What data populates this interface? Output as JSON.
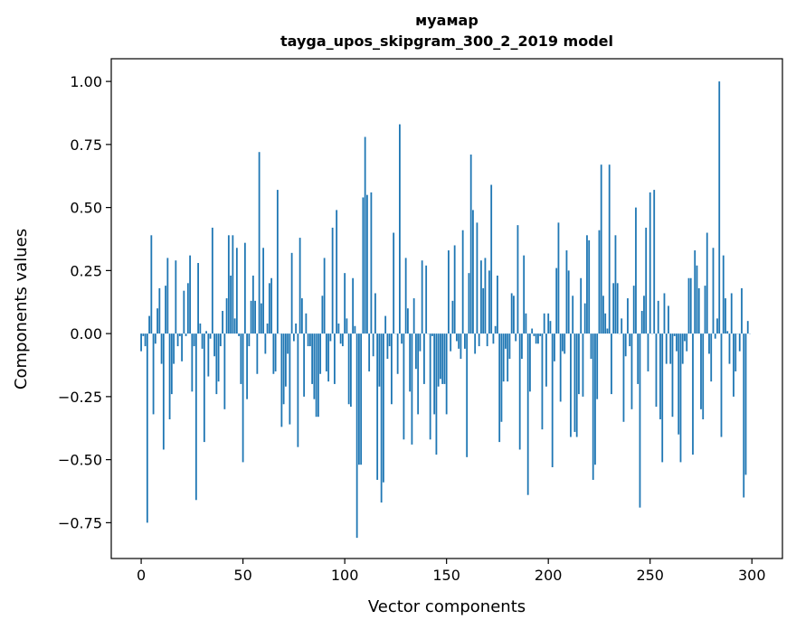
{
  "chart_data": {
    "type": "bar",
    "title": "муамар",
    "subtitle": "tayga_upos_skipgram_300_2_2019 model",
    "xlabel": "Vector components",
    "ylabel": "Components values",
    "xlim": [
      -14.7,
      315
    ],
    "ylim": [
      -0.892,
      1.09
    ],
    "xticks": [
      0,
      50,
      100,
      150,
      200,
      250,
      300
    ],
    "xtick_labels": [
      "0",
      "50",
      "100",
      "150",
      "200",
      "250",
      "300"
    ],
    "yticks": [
      -0.75,
      -0.5,
      -0.25,
      0,
      0.25,
      0.5,
      0.75,
      1.0
    ],
    "ytick_labels": [
      "−0.75",
      "−0.50",
      "−0.25",
      "0.00",
      "0.25",
      "0.50",
      "0.75",
      "1.00"
    ],
    "grid": false,
    "bar_color": "#1f77b4",
    "values": [
      -0.07,
      -0.01,
      -0.05,
      -0.75,
      0.07,
      0.39,
      -0.32,
      -0.04,
      0.1,
      0.18,
      -0.12,
      -0.46,
      0.19,
      0.3,
      -0.34,
      -0.24,
      -0.12,
      0.29,
      -0.05,
      -0.01,
      -0.11,
      0.17,
      -0.01,
      0.2,
      0.31,
      -0.23,
      -0.05,
      -0.66,
      0.28,
      0.04,
      -0.06,
      -0.43,
      0.01,
      -0.17,
      -0.02,
      0.42,
      -0.09,
      -0.24,
      -0.19,
      -0.05,
      0.09,
      -0.3,
      0.14,
      0.39,
      0.23,
      0.39,
      0.06,
      0.34,
      -0.01,
      -0.2,
      -0.51,
      0.36,
      -0.26,
      -0.05,
      0.13,
      0.23,
      0.13,
      -0.16,
      0.72,
      0.12,
      0.34,
      -0.08,
      0.04,
      0.2,
      0.22,
      -0.16,
      -0.15,
      0.57,
      0.0,
      -0.37,
      -0.28,
      -0.21,
      -0.08,
      -0.36,
      0.32,
      -0.03,
      0.04,
      -0.45,
      0.38,
      0.14,
      -0.25,
      0.08,
      -0.05,
      -0.05,
      -0.2,
      -0.26,
      -0.33,
      -0.33,
      -0.16,
      0.15,
      0.3,
      -0.15,
      -0.19,
      -0.03,
      0.42,
      -0.2,
      0.49,
      0.04,
      -0.04,
      -0.05,
      0.24,
      0.06,
      -0.28,
      -0.29,
      0.22,
      0.03,
      -0.81,
      -0.52,
      -0.52,
      0.54,
      0.78,
      0.55,
      -0.15,
      0.56,
      -0.09,
      0.16,
      -0.58,
      -0.21,
      -0.67,
      -0.59,
      0.07,
      -0.1,
      -0.05,
      -0.28,
      0.4,
      0.0,
      -0.16,
      0.83,
      -0.04,
      -0.42,
      0.3,
      0.1,
      -0.23,
      -0.44,
      0.14,
      -0.14,
      -0.32,
      -0.07,
      0.29,
      -0.2,
      0.27,
      0.0,
      -0.42,
      -0.01,
      -0.32,
      -0.48,
      -0.21,
      -0.18,
      -0.2,
      -0.2,
      -0.32,
      0.33,
      -0.07,
      0.13,
      0.35,
      -0.03,
      -0.06,
      -0.1,
      0.41,
      -0.06,
      -0.49,
      0.24,
      0.71,
      0.49,
      -0.08,
      0.44,
      -0.05,
      0.29,
      0.18,
      0.3,
      -0.05,
      0.25,
      0.59,
      -0.04,
      0.03,
      0.23,
      -0.43,
      -0.35,
      -0.19,
      -0.06,
      -0.19,
      -0.1,
      0.16,
      0.15,
      -0.03,
      0.43,
      -0.46,
      -0.1,
      0.31,
      0.08,
      -0.64,
      -0.23,
      0.02,
      -0.01,
      -0.04,
      -0.04,
      -0.01,
      -0.38,
      0.08,
      -0.21,
      0.08,
      0.05,
      -0.53,
      -0.11,
      0.26,
      0.44,
      -0.27,
      -0.07,
      -0.08,
      0.33,
      0.25,
      -0.41,
      0.15,
      -0.39,
      -0.41,
      -0.24,
      0.22,
      -0.25,
      0.12,
      0.39,
      0.37,
      -0.1,
      -0.58,
      -0.52,
      -0.26,
      0.41,
      0.67,
      0.15,
      0.08,
      0.02,
      0.67,
      -0.24,
      0.2,
      0.39,
      0.2,
      0.0,
      0.06,
      -0.35,
      -0.09,
      0.14,
      -0.05,
      -0.3,
      0.19,
      0.5,
      -0.2,
      -0.69,
      0.09,
      0.15,
      0.42,
      -0.15,
      0.56,
      0.0,
      0.57,
      -0.29,
      0.13,
      -0.34,
      -0.51,
      0.16,
      -0.12,
      0.11,
      -0.12,
      -0.33,
      -0.01,
      -0.07,
      -0.4,
      -0.51,
      -0.12,
      -0.03,
      -0.07,
      0.22,
      0.22,
      -0.48,
      0.33,
      0.27,
      0.18,
      -0.3,
      -0.34,
      0.19,
      0.4,
      -0.08,
      -0.19,
      0.34,
      -0.02,
      0.06,
      1.0,
      -0.41,
      0.31,
      0.14,
      0.01,
      -0.12,
      0.16,
      -0.25,
      -0.15,
      0.0,
      -0.07,
      0.18,
      -0.65,
      -0.56,
      0.05,
      0.0
    ]
  }
}
